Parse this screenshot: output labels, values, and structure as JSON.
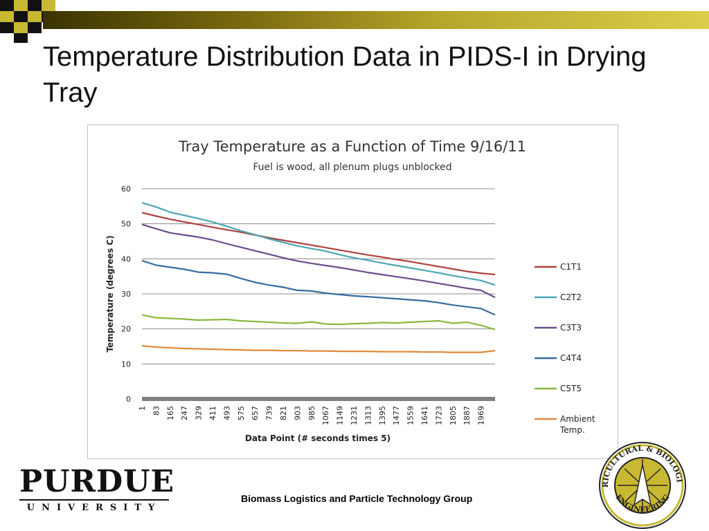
{
  "slide": {
    "title": "Temperature Distribution Data in PIDS-I in Drying Tray",
    "footer": "Biomass Logistics and Particle Technology Group",
    "logo_text": "PURDUE",
    "logo_subtext": "UNIVERSITY",
    "seal_text": "AGRICULTURAL & BIOLOGICAL ENGINEERING",
    "accent_gold": "#c8b832"
  },
  "chart_data": {
    "type": "line",
    "title": "Tray Temperature as a Function of Time 9/16/11",
    "subtitle": "Fuel is wood, all plenum plugs unblocked",
    "xlabel": "Data Point (# seconds times 5)",
    "ylabel": "Temperature (degrees C)",
    "ylim": [
      0,
      60
    ],
    "yticks": [
      0,
      10,
      20,
      30,
      40,
      50,
      60
    ],
    "xlim": [
      1,
      2051
    ],
    "xticks": [
      1,
      83,
      165,
      247,
      329,
      411,
      493,
      575,
      657,
      739,
      821,
      903,
      985,
      1067,
      1149,
      1231,
      1313,
      1395,
      1477,
      1559,
      1641,
      1723,
      1805,
      1887,
      1969
    ],
    "grid": true,
    "legend_position": "right",
    "series": [
      {
        "name": "C1T1",
        "color": "#b0413e",
        "x": [
          1,
          83,
          165,
          247,
          329,
          411,
          493,
          575,
          657,
          739,
          821,
          903,
          985,
          1067,
          1149,
          1231,
          1313,
          1395,
          1477,
          1559,
          1641,
          1723,
          1805,
          1887,
          1969,
          2051
        ],
        "values": [
          53.2,
          52.2,
          51.3,
          50.5,
          49.8,
          49.0,
          48.3,
          47.6,
          46.8,
          46.0,
          45.3,
          44.6,
          43.9,
          43.2,
          42.5,
          41.8,
          41.1,
          40.5,
          39.8,
          39.2,
          38.5,
          37.8,
          37.1,
          36.4,
          35.9,
          35.5
        ]
      },
      {
        "name": "C2T2",
        "color": "#4aa6b3",
        "x": [
          1,
          83,
          165,
          247,
          329,
          411,
          493,
          575,
          657,
          739,
          821,
          903,
          985,
          1067,
          1149,
          1231,
          1313,
          1395,
          1477,
          1559,
          1641,
          1723,
          1805,
          1887,
          1969,
          2051
        ],
        "values": [
          56.0,
          54.8,
          53.3,
          52.4,
          51.5,
          50.5,
          49.3,
          48.0,
          46.9,
          45.7,
          44.7,
          43.7,
          42.9,
          42.2,
          41.2,
          40.3,
          39.6,
          38.8,
          38.1,
          37.4,
          36.7,
          36.0,
          35.2,
          34.5,
          33.8,
          32.5
        ]
      },
      {
        "name": "C3T3",
        "color": "#6b4c8e",
        "x": [
          1,
          83,
          165,
          247,
          329,
          411,
          493,
          575,
          657,
          739,
          821,
          903,
          985,
          1067,
          1149,
          1231,
          1313,
          1395,
          1477,
          1559,
          1641,
          1723,
          1805,
          1887,
          1969,
          2051
        ],
        "values": [
          49.8,
          48.6,
          47.4,
          46.8,
          46.2,
          45.4,
          44.3,
          43.3,
          42.3,
          41.3,
          40.3,
          39.4,
          38.7,
          38.1,
          37.5,
          36.8,
          36.1,
          35.5,
          34.9,
          34.3,
          33.7,
          33.0,
          32.3,
          31.6,
          31.0,
          29.0
        ]
      },
      {
        "name": "C4T4",
        "color": "#356b9e",
        "x": [
          1,
          83,
          165,
          247,
          329,
          411,
          493,
          575,
          657,
          739,
          821,
          903,
          985,
          1067,
          1149,
          1231,
          1313,
          1395,
          1477,
          1559,
          1641,
          1723,
          1805,
          1887,
          1969,
          2051
        ],
        "values": [
          39.5,
          38.2,
          37.6,
          37.0,
          36.2,
          36.0,
          35.6,
          34.4,
          33.3,
          32.5,
          31.9,
          31.0,
          30.8,
          30.2,
          29.8,
          29.4,
          29.2,
          28.9,
          28.6,
          28.3,
          28.0,
          27.5,
          26.8,
          26.3,
          25.8,
          24.0
        ]
      },
      {
        "name": "C5T5",
        "color": "#8ab83e",
        "x": [
          1,
          83,
          165,
          247,
          329,
          411,
          493,
          575,
          657,
          739,
          821,
          903,
          985,
          1067,
          1149,
          1231,
          1313,
          1395,
          1477,
          1559,
          1641,
          1723,
          1805,
          1887,
          1969,
          2051
        ],
        "values": [
          24.0,
          23.2,
          23.0,
          22.8,
          22.5,
          22.6,
          22.7,
          22.3,
          22.1,
          21.9,
          21.7,
          21.6,
          22.0,
          21.4,
          21.3,
          21.5,
          21.6,
          21.8,
          21.7,
          21.9,
          22.1,
          22.3,
          21.6,
          21.9,
          21.0,
          19.8
        ]
      },
      {
        "name": "Ambient Temp.",
        "color": "#e08a3c",
        "x": [
          1,
          83,
          165,
          247,
          329,
          411,
          493,
          575,
          657,
          739,
          821,
          903,
          985,
          1067,
          1149,
          1231,
          1313,
          1395,
          1477,
          1559,
          1641,
          1723,
          1805,
          1887,
          1969,
          2051
        ],
        "values": [
          15.2,
          14.8,
          14.6,
          14.4,
          14.3,
          14.2,
          14.1,
          14.0,
          13.9,
          13.9,
          13.8,
          13.8,
          13.7,
          13.7,
          13.6,
          13.6,
          13.6,
          13.5,
          13.5,
          13.5,
          13.4,
          13.4,
          13.3,
          13.3,
          13.3,
          13.8
        ]
      }
    ]
  }
}
